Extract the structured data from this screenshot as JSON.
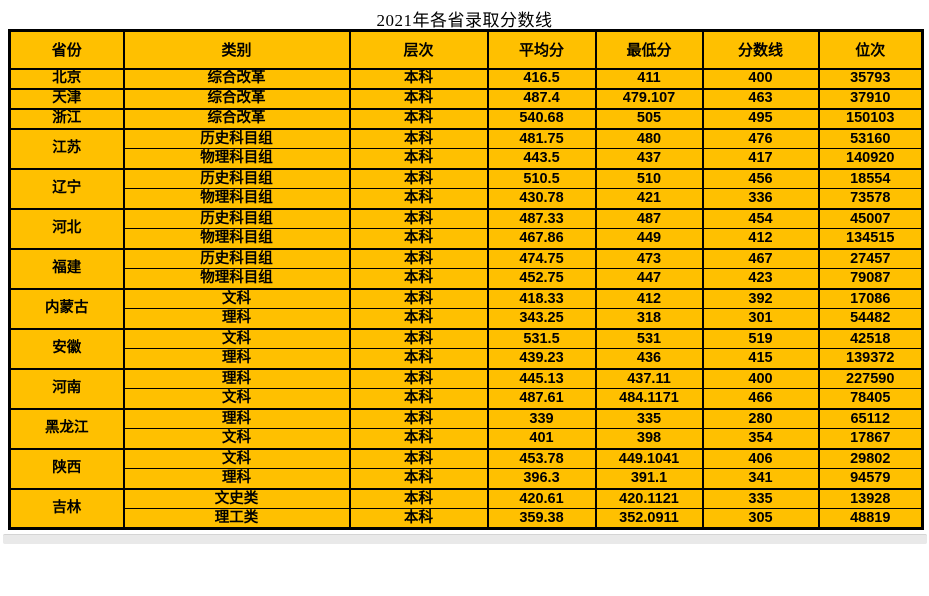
{
  "title": "2021年各省录取分数线",
  "colors": {
    "cell_background": "#FFC000",
    "border": "#000000",
    "text": "#000000",
    "shadow_bar": "#e9e9e9"
  },
  "table": {
    "columns": [
      "省份",
      "类别",
      "层次",
      "平均分",
      "最低分",
      "分数线",
      "位次"
    ],
    "groups": [
      {
        "province": "北京",
        "rows": [
          [
            "综合改革",
            "本科",
            "416.5",
            "411",
            "400",
            "35793"
          ]
        ]
      },
      {
        "province": "天津",
        "rows": [
          [
            "综合改革",
            "本科",
            "487.4",
            "479.107",
            "463",
            "37910"
          ]
        ]
      },
      {
        "province": "浙江",
        "rows": [
          [
            "综合改革",
            "本科",
            "540.68",
            "505",
            "495",
            "150103"
          ]
        ]
      },
      {
        "province": "江苏",
        "rows": [
          [
            "历史科目组",
            "本科",
            "481.75",
            "480",
            "476",
            "53160"
          ],
          [
            "物理科目组",
            "本科",
            "443.5",
            "437",
            "417",
            "140920"
          ]
        ]
      },
      {
        "province": "辽宁",
        "rows": [
          [
            "历史科目组",
            "本科",
            "510.5",
            "510",
            "456",
            "18554"
          ],
          [
            "物理科目组",
            "本科",
            "430.78",
            "421",
            "336",
            "73578"
          ]
        ]
      },
      {
        "province": "河北",
        "rows": [
          [
            "历史科目组",
            "本科",
            "487.33",
            "487",
            "454",
            "45007"
          ],
          [
            "物理科目组",
            "本科",
            "467.86",
            "449",
            "412",
            "134515"
          ]
        ]
      },
      {
        "province": "福建",
        "rows": [
          [
            "历史科目组",
            "本科",
            "474.75",
            "473",
            "467",
            "27457"
          ],
          [
            "物理科目组",
            "本科",
            "452.75",
            "447",
            "423",
            "79087"
          ]
        ]
      },
      {
        "province": "内蒙古",
        "rows": [
          [
            "文科",
            "本科",
            "418.33",
            "412",
            "392",
            "17086"
          ],
          [
            "理科",
            "本科",
            "343.25",
            "318",
            "301",
            "54482"
          ]
        ]
      },
      {
        "province": "安徽",
        "rows": [
          [
            "文科",
            "本科",
            "531.5",
            "531",
            "519",
            "42518"
          ],
          [
            "理科",
            "本科",
            "439.23",
            "436",
            "415",
            "139372"
          ]
        ]
      },
      {
        "province": "河南",
        "rows": [
          [
            "理科",
            "本科",
            "445.13",
            "437.11",
            "400",
            "227590"
          ],
          [
            "文科",
            "本科",
            "487.61",
            "484.1171",
            "466",
            "78405"
          ]
        ]
      },
      {
        "province": "黑龙江",
        "rows": [
          [
            "理科",
            "本科",
            "339",
            "335",
            "280",
            "65112"
          ],
          [
            "文科",
            "本科",
            "401",
            "398",
            "354",
            "17867"
          ]
        ]
      },
      {
        "province": "陕西",
        "rows": [
          [
            "文科",
            "本科",
            "453.78",
            "449.1041",
            "406",
            "29802"
          ],
          [
            "理科",
            "本科",
            "396.3",
            "391.1",
            "341",
            "94579"
          ]
        ]
      },
      {
        "province": "吉林",
        "rows": [
          [
            "文史类",
            "本科",
            "420.61",
            "420.1121",
            "335",
            "13928"
          ],
          [
            "理工类",
            "本科",
            "359.38",
            "352.0911",
            "305",
            "48819"
          ]
        ]
      }
    ]
  }
}
